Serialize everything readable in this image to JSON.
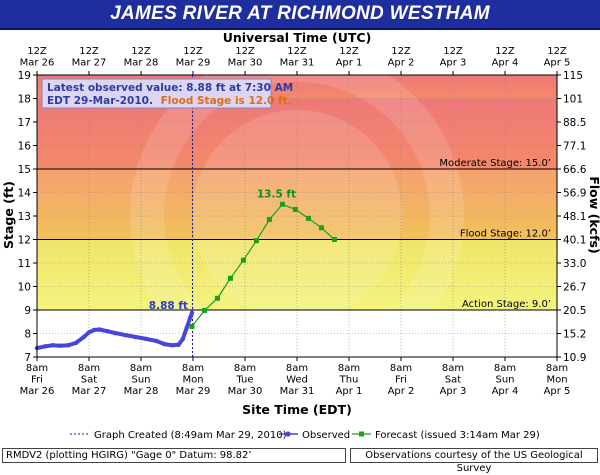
{
  "header": {
    "title": "JAMES RIVER  AT RICHMOND WESTHAM",
    "utc_label": "Universal Time (UTC)",
    "site_label": "Site Time (EDT)"
  },
  "info_box": {
    "line1": "Latest observed value: 8.88 ft at 7:30 AM",
    "line2_prefix": "EDT 29-Mar-2010.",
    "line2_flood": "Flood Stage is 12.0 ft."
  },
  "thresholds": [
    {
      "label": "Moderate Stage: 15.0’",
      "value": 15.0
    },
    {
      "label": "Flood Stage: 12.0’",
      "value": 12.0
    },
    {
      "label": "Action Stage: 9.0’",
      "value": 9.0
    }
  ],
  "annotations": {
    "observed_last": "8.88 ft",
    "forecast_peak": "13.5 ft"
  },
  "legend": {
    "graph_created": "Graph Created (8:49am Mar 29, 2010)",
    "observed": "Observed",
    "forecast": "Forecast (issued 3:14am Mar 29)"
  },
  "footer": {
    "left": "RMDV2 (plotting HGIRG)  \"Gage 0\" Datum: 98.82’",
    "right": "Observations courtesy of the  US Geological Survey"
  },
  "colors": {
    "major": "#f07c7c",
    "moderate": "#f6a96c",
    "minor": "#ecef74",
    "action": "#ffffff",
    "observed": "#4646dc",
    "forecast": "#1d9e1d",
    "title_bg": "#1f2e9e",
    "graph_created_line": "#1a1a8c"
  },
  "chart_data": {
    "type": "line",
    "title": "JAMES RIVER  AT RICHMOND WESTHAM",
    "xlabel": "Site Time (EDT)",
    "ylabel": "Stage (ft)",
    "y2label": "Flow (kcfs)",
    "ylim": [
      7,
      19
    ],
    "xlim_days": [
      0,
      10
    ],
    "x_ticks_bottom": [
      {
        "time": "8am",
        "dow": "Fri",
        "date": "Mar 26"
      },
      {
        "time": "8am",
        "dow": "Sat",
        "date": "Mar 27"
      },
      {
        "time": "8am",
        "dow": "Sun",
        "date": "Mar 28"
      },
      {
        "time": "8am",
        "dow": "Mon",
        "date": "Mar 29"
      },
      {
        "time": "8am",
        "dow": "Tue",
        "date": "Mar 30"
      },
      {
        "time": "8am",
        "dow": "Wed",
        "date": "Mar 31"
      },
      {
        "time": "8am",
        "dow": "Thu",
        "date": "Apr 1"
      },
      {
        "time": "8am",
        "dow": "Fri",
        "date": "Apr 2"
      },
      {
        "time": "8am",
        "dow": "Sat",
        "date": "Apr 3"
      },
      {
        "time": "8am",
        "dow": "Sun",
        "date": "Apr 4"
      },
      {
        "time": "8am",
        "dow": "Mon",
        "date": "Apr 5"
      }
    ],
    "x_ticks_top": [
      {
        "time": "12Z",
        "date": "Mar 26"
      },
      {
        "time": "12Z",
        "date": "Mar 27"
      },
      {
        "time": "12Z",
        "date": "Mar 28"
      },
      {
        "time": "12Z",
        "date": "Mar 29"
      },
      {
        "time": "12Z",
        "date": "Mar 30"
      },
      {
        "time": "12Z",
        "date": "Mar 31"
      },
      {
        "time": "12Z",
        "date": "Apr 1"
      },
      {
        "time": "12Z",
        "date": "Apr 2"
      },
      {
        "time": "12Z",
        "date": "Apr 3"
      },
      {
        "time": "12Z",
        "date": "Apr 4"
      },
      {
        "time": "12Z",
        "date": "Apr 5"
      }
    ],
    "y_ticks_left": [
      7,
      8,
      9,
      10,
      11,
      12,
      13,
      14,
      15,
      16,
      17,
      18,
      19
    ],
    "y_ticks_right": [
      "10.9",
      "15.2",
      "20.5",
      "26.7",
      "33.0",
      "40.1",
      "48.1",
      "56.9",
      "66.6",
      "77.1",
      "88.5",
      "101",
      "115"
    ],
    "graph_created_day": 2.99,
    "series": [
      {
        "name": "Observed",
        "style": "line",
        "points": [
          [
            0.0,
            7.38
          ],
          [
            0.15,
            7.45
          ],
          [
            0.3,
            7.5
          ],
          [
            0.45,
            7.48
          ],
          [
            0.6,
            7.5
          ],
          [
            0.75,
            7.6
          ],
          [
            0.9,
            7.85
          ],
          [
            1.0,
            8.05
          ],
          [
            1.1,
            8.15
          ],
          [
            1.2,
            8.17
          ],
          [
            1.35,
            8.1
          ],
          [
            1.5,
            8.02
          ],
          [
            1.7,
            7.93
          ],
          [
            1.9,
            7.85
          ],
          [
            2.1,
            7.77
          ],
          [
            2.3,
            7.68
          ],
          [
            2.45,
            7.55
          ],
          [
            2.6,
            7.5
          ],
          [
            2.72,
            7.52
          ],
          [
            2.8,
            7.75
          ],
          [
            2.88,
            8.25
          ],
          [
            2.95,
            8.7
          ],
          [
            2.98,
            8.88
          ]
        ]
      },
      {
        "name": "Forecast (issued 3:14am Mar 29)",
        "style": "line-square",
        "points": [
          [
            2.98,
            8.3
          ],
          [
            3.22,
            8.98
          ],
          [
            3.47,
            9.5
          ],
          [
            3.72,
            10.35
          ],
          [
            3.97,
            11.12
          ],
          [
            4.22,
            11.95
          ],
          [
            4.47,
            12.85
          ],
          [
            4.72,
            13.5
          ],
          [
            4.97,
            13.28
          ],
          [
            5.22,
            12.9
          ],
          [
            5.47,
            12.5
          ],
          [
            5.72,
            12.0
          ]
        ]
      }
    ],
    "bands": [
      {
        "name": "major",
        "from": 18,
        "to": 19
      },
      {
        "name": "major",
        "from": 15,
        "to": 18
      },
      {
        "name": "moderate",
        "from": 12,
        "to": 15
      },
      {
        "name": "minor",
        "from": 9,
        "to": 12
      },
      {
        "name": "action",
        "from": 7,
        "to": 9
      }
    ]
  }
}
